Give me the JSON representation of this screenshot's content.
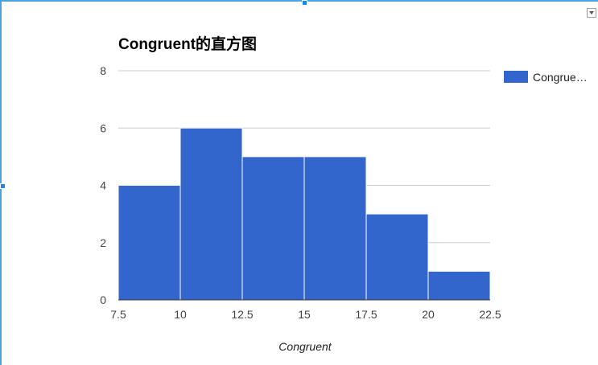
{
  "chart_data": {
    "type": "bar",
    "title": "Congruent的直方图",
    "xlabel": "Congruent",
    "ylabel": "",
    "bins": [
      {
        "start": 7.5,
        "end": 10,
        "count": 4
      },
      {
        "start": 10,
        "end": 12.5,
        "count": 6
      },
      {
        "start": 12.5,
        "end": 15,
        "count": 5
      },
      {
        "start": 15,
        "end": 17.5,
        "count": 5
      },
      {
        "start": 17.5,
        "end": 20,
        "count": 3
      },
      {
        "start": 20,
        "end": 22.5,
        "count": 1
      }
    ],
    "xlim": [
      7.5,
      22.5
    ],
    "ylim": [
      0,
      8
    ],
    "x_ticks": [
      "7.5",
      "10",
      "12.5",
      "15",
      "17.5",
      "20",
      "22.5"
    ],
    "y_ticks": [
      "0",
      "2",
      "4",
      "6",
      "8"
    ],
    "series": [
      {
        "name": "Congrue…",
        "color": "#3366cc"
      }
    ],
    "grid": true,
    "legend_position": "right"
  }
}
